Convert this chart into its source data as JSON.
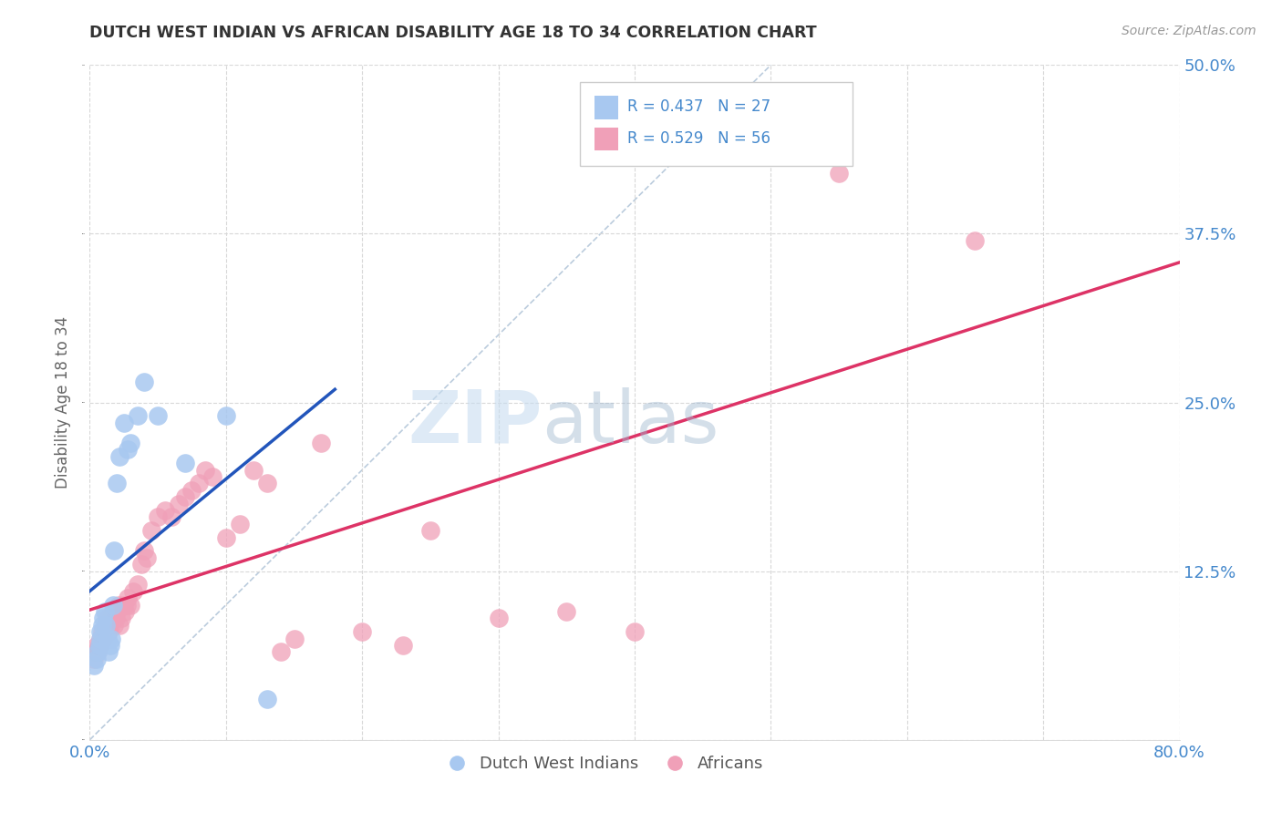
{
  "title": "DUTCH WEST INDIAN VS AFRICAN DISABILITY AGE 18 TO 34 CORRELATION CHART",
  "source": "Source: ZipAtlas.com",
  "ylabel": "Disability Age 18 to 34",
  "xlim": [
    0.0,
    0.8
  ],
  "ylim": [
    0.0,
    0.5
  ],
  "xticks": [
    0.0,
    0.1,
    0.2,
    0.3,
    0.4,
    0.5,
    0.6,
    0.7,
    0.8
  ],
  "xticklabels": [
    "0.0%",
    "",
    "",
    "",
    "",
    "",
    "",
    "",
    "80.0%"
  ],
  "yticks": [
    0.0,
    0.125,
    0.25,
    0.375,
    0.5
  ],
  "yticklabels": [
    "",
    "12.5%",
    "25.0%",
    "37.5%",
    "50.0%"
  ],
  "background_color": "#ffffff",
  "grid_color": "#d8d8d8",
  "dutch_color": "#a8c8f0",
  "african_color": "#f0a0b8",
  "dutch_line_color": "#2255bb",
  "african_line_color": "#dd3366",
  "legend_text_color": "#4488cc",
  "watermark_zip": "ZIP",
  "watermark_atlas": "atlas",
  "dutch_x": [
    0.003,
    0.005,
    0.006,
    0.007,
    0.008,
    0.008,
    0.009,
    0.01,
    0.011,
    0.012,
    0.013,
    0.014,
    0.015,
    0.016,
    0.017,
    0.018,
    0.02,
    0.022,
    0.025,
    0.028,
    0.03,
    0.035,
    0.04,
    0.05,
    0.07,
    0.1,
    0.13
  ],
  "dutch_y": [
    0.055,
    0.06,
    0.065,
    0.07,
    0.075,
    0.08,
    0.085,
    0.09,
    0.095,
    0.085,
    0.075,
    0.065,
    0.07,
    0.075,
    0.1,
    0.14,
    0.19,
    0.21,
    0.235,
    0.215,
    0.22,
    0.24,
    0.265,
    0.24,
    0.205,
    0.24,
    0.03
  ],
  "african_x": [
    0.003,
    0.004,
    0.005,
    0.006,
    0.007,
    0.008,
    0.009,
    0.01,
    0.011,
    0.012,
    0.013,
    0.014,
    0.015,
    0.016,
    0.017,
    0.018,
    0.019,
    0.02,
    0.021,
    0.022,
    0.023,
    0.025,
    0.026,
    0.027,
    0.028,
    0.03,
    0.032,
    0.035,
    0.038,
    0.04,
    0.042,
    0.045,
    0.05,
    0.055,
    0.06,
    0.065,
    0.07,
    0.075,
    0.08,
    0.085,
    0.09,
    0.1,
    0.11,
    0.12,
    0.13,
    0.14,
    0.15,
    0.17,
    0.2,
    0.23,
    0.25,
    0.3,
    0.35,
    0.4,
    0.55,
    0.65
  ],
  "african_y": [
    0.06,
    0.065,
    0.07,
    0.065,
    0.07,
    0.075,
    0.08,
    0.075,
    0.08,
    0.085,
    0.09,
    0.08,
    0.085,
    0.09,
    0.095,
    0.085,
    0.09,
    0.095,
    0.1,
    0.085,
    0.09,
    0.1,
    0.095,
    0.1,
    0.105,
    0.1,
    0.11,
    0.115,
    0.13,
    0.14,
    0.135,
    0.155,
    0.165,
    0.17,
    0.165,
    0.175,
    0.18,
    0.185,
    0.19,
    0.2,
    0.195,
    0.15,
    0.16,
    0.2,
    0.19,
    0.065,
    0.075,
    0.22,
    0.08,
    0.07,
    0.155,
    0.09,
    0.095,
    0.08,
    0.42,
    0.37
  ],
  "ref_line": [
    [
      0.0,
      0.0
    ],
    [
      0.5,
      0.5
    ]
  ],
  "dutch_line_x": [
    0.0,
    0.18
  ],
  "african_line_x": [
    0.0,
    0.8
  ]
}
